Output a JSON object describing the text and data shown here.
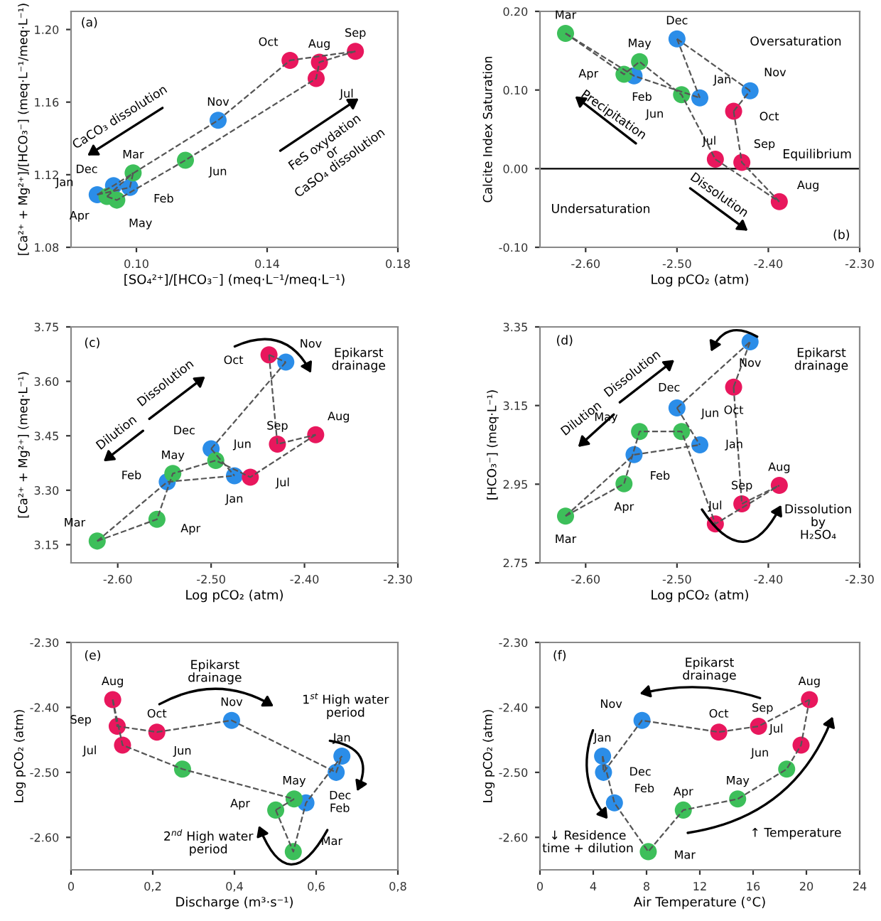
{
  "chart_data": [
    {
      "type": "scatter",
      "marker": "circle",
      "xlabel": "[SO₄²⁺]/[HCO₃⁻] (meq·L⁻¹/meq·L⁻¹)",
      "ylabel": "[Ca²⁺ + Mg²⁺]/[HCO₃⁻] (meq·L⁻¹/meq·L⁻¹)",
      "xlim": [
        0.08,
        0.18
      ],
      "ylim": [
        1.08,
        1.21
      ],
      "xticks": [
        {
          "value": 0.1,
          "label": "0.10"
        },
        {
          "value": 0.14,
          "label": "0.14"
        },
        {
          "value": 0.18,
          "label": "0.18"
        }
      ],
      "yticks": [
        {
          "value": 1.08,
          "label": "1.08"
        },
        {
          "value": 1.12,
          "label": "1.12"
        },
        {
          "value": 1.16,
          "label": "1.16"
        },
        {
          "value": 1.2,
          "label": "1.20"
        }
      ],
      "annotations": [
        "(a)",
        "CaCO₃ dissolution",
        "FeS oxydation\nor\nCaSO₄ dissolution"
      ],
      "series": [
        {
          "type": "line",
          "line_style": "dashed",
          "marker": "none",
          "color": "#555555",
          "x": [
            0.088,
            0.098,
            0.099
          ],
          "values": [
            1.109,
            1.113,
            1.121
          ]
        },
        {
          "type": "line",
          "line_style": "dashed",
          "marker": "none",
          "color": "#555555",
          "x": [
            0.091,
            0.099
          ],
          "values": [
            1.108,
            1.121
          ]
        },
        {
          "type": "line",
          "line_style": "dashed",
          "marker": "none",
          "color": "#555555",
          "x": [
            0.091,
            0.094,
            0.115,
            0.155,
            0.156,
            0.167
          ],
          "values": [
            1.108,
            1.106,
            1.128,
            1.173,
            1.182,
            1.188
          ]
        },
        {
          "type": "line",
          "line_style": "dashed",
          "marker": "none",
          "color": "#555555",
          "x": [
            0.088,
            0.093,
            0.125,
            0.147,
            0.167
          ],
          "values": [
            1.109,
            1.114,
            1.15,
            1.183,
            1.188
          ]
        },
        {
          "color": "#2b8de8",
          "x": [
            0.088,
            0.098,
            0.125,
            0.093
          ],
          "values": [
            1.109,
            1.113,
            1.15,
            1.114
          ],
          "value_labels": [
            "Jan",
            "Feb",
            "Nov",
            "Dec"
          ]
        },
        {
          "color": "#3dbf5a",
          "x": [
            0.099,
            0.091,
            0.094,
            0.115
          ],
          "values": [
            1.121,
            1.108,
            1.106,
            1.128
          ],
          "value_labels": [
            "Mar",
            "Apr",
            "May",
            "Jun"
          ]
        },
        {
          "color": "#e8175d",
          "x": [
            0.155,
            0.156,
            0.167,
            0.147
          ],
          "values": [
            1.173,
            1.182,
            1.188,
            1.183
          ],
          "value_labels": [
            "Jul",
            "Aug",
            "Sep",
            "Oct"
          ]
        }
      ]
    },
    {
      "type": "scatter",
      "marker": "circle",
      "xlabel": "Log pCO₂ (atm)",
      "ylabel": "Calcite Index Saturation",
      "xlim": [
        -2.65,
        -2.3
      ],
      "ylim": [
        -0.1,
        0.2
      ],
      "xticks": [
        {
          "value": -2.6,
          "label": "-2.60"
        },
        {
          "value": -2.5,
          "label": "-2.50"
        },
        {
          "value": -2.4,
          "label": "-2.40"
        },
        {
          "value": -2.3,
          "label": "-2.30"
        }
      ],
      "yticks": [
        {
          "value": -0.1,
          "label": "-0.10"
        },
        {
          "value": 0.0,
          "label": "0.00"
        },
        {
          "value": 0.1,
          "label": "0.10"
        },
        {
          "value": 0.2,
          "label": "0.20"
        }
      ],
      "ref_lines": [
        {
          "axis": "y",
          "value": 0,
          "label": "Equilibrium",
          "color": "#000000"
        }
      ],
      "annotations": [
        "(b)",
        "Oversaturation",
        "Undersaturation",
        "Precipitation",
        "Dissolution"
      ],
      "series": [
        {
          "type": "line",
          "line_style": "dashed",
          "marker": "none",
          "color": "#555555",
          "x": [
            -2.622,
            -2.547,
            -2.475
          ],
          "values": [
            0.172,
            0.118,
            0.09
          ]
        },
        {
          "type": "line",
          "line_style": "dashed",
          "marker": "none",
          "color": "#555555",
          "x": [
            -2.622,
            -2.558,
            -2.541,
            -2.495,
            -2.458,
            -2.388
          ],
          "values": [
            0.172,
            0.12,
            0.136,
            0.094,
            0.012,
            -0.042
          ]
        },
        {
          "type": "line",
          "line_style": "dashed",
          "marker": "none",
          "color": "#555555",
          "x": [
            -2.438,
            -2.429,
            -2.388
          ],
          "values": [
            0.073,
            0.008,
            -0.042
          ]
        },
        {
          "type": "line",
          "line_style": "dashed",
          "marker": "none",
          "color": "#555555",
          "x": [
            -2.438,
            -2.42
          ],
          "values": [
            0.073,
            0.099
          ]
        },
        {
          "type": "line",
          "line_style": "dashed",
          "marker": "none",
          "color": "#555555",
          "x": [
            -2.5,
            -2.42
          ],
          "values": [
            0.165,
            0.099
          ]
        },
        {
          "type": "line",
          "line_style": "dashed",
          "marker": "none",
          "color": "#555555",
          "x": [
            -2.5,
            -2.475
          ],
          "values": [
            0.165,
            0.09
          ]
        },
        {
          "color": "#2b8de8",
          "x": [
            -2.475,
            -2.547,
            -2.42,
            -2.5
          ],
          "values": [
            0.09,
            0.118,
            0.099,
            0.165
          ],
          "value_labels": [
            "Jan",
            "Feb",
            "Nov",
            "Dec"
          ]
        },
        {
          "color": "#3dbf5a",
          "x": [
            -2.622,
            -2.558,
            -2.541,
            -2.495
          ],
          "values": [
            0.172,
            0.12,
            0.136,
            0.094
          ],
          "value_labels": [
            "Mar",
            "Apr",
            "May",
            "Jun"
          ]
        },
        {
          "color": "#e8175d",
          "x": [
            -2.458,
            -2.388,
            -2.429,
            -2.438
          ],
          "values": [
            0.012,
            -0.042,
            0.008,
            0.073
          ],
          "value_labels": [
            "Jul",
            "Aug",
            "Sep",
            "Oct"
          ]
        }
      ]
    },
    {
      "type": "scatter",
      "marker": "circle",
      "xlabel": "Log pCO₂ (atm)",
      "ylabel": "[Ca²⁺ + Mg²⁺] (meq·L⁻¹)",
      "xlim": [
        -2.65,
        -2.3
      ],
      "ylim": [
        3.1,
        3.75
      ],
      "xticks": [
        {
          "value": -2.6,
          "label": "-2.60"
        },
        {
          "value": -2.5,
          "label": "-2.50"
        },
        {
          "value": -2.4,
          "label": "-2.40"
        },
        {
          "value": -2.3,
          "label": "-2.30"
        }
      ],
      "yticks": [
        3.15,
        {
          "value": 3.3,
          "label": "3.30"
        },
        3.45,
        {
          "value": 3.6,
          "label": "3.60"
        },
        3.75
      ],
      "annotations": [
        "(c)",
        "Dilution",
        "Dissolution",
        "Epikarst\ndrainage"
      ],
      "series": [
        {
          "type": "line",
          "line_style": "dashed",
          "marker": "none",
          "color": "#555555",
          "x": [
            -2.622,
            -2.547,
            -2.475
          ],
          "values": [
            3.16,
            3.323,
            3.34
          ]
        },
        {
          "type": "line",
          "line_style": "dashed",
          "marker": "none",
          "color": "#555555",
          "x": [
            -2.622,
            -2.558,
            -2.541,
            -2.495,
            -2.458,
            -2.388
          ],
          "values": [
            3.16,
            3.22,
            3.346,
            3.382,
            3.336,
            3.453
          ]
        },
        {
          "type": "line",
          "line_style": "dashed",
          "marker": "none",
          "color": "#555555",
          "x": [
            -2.438,
            -2.429,
            -2.388
          ],
          "values": [
            3.673,
            3.427,
            3.453
          ]
        },
        {
          "type": "line",
          "line_style": "dashed",
          "marker": "none",
          "color": "#555555",
          "x": [
            -2.438,
            -2.42
          ],
          "values": [
            3.673,
            3.653
          ]
        },
        {
          "type": "line",
          "line_style": "dashed",
          "marker": "none",
          "color": "#555555",
          "x": [
            -2.5,
            -2.42
          ],
          "values": [
            3.414,
            3.653
          ]
        },
        {
          "type": "line",
          "line_style": "dashed",
          "marker": "none",
          "color": "#555555",
          "x": [
            -2.5,
            -2.475
          ],
          "values": [
            3.414,
            3.34
          ]
        },
        {
          "color": "#2b8de8",
          "x": [
            -2.475,
            -2.547,
            -2.42,
            -2.5
          ],
          "values": [
            3.34,
            3.323,
            3.653,
            3.414
          ],
          "value_labels": [
            "Jan",
            "Feb",
            "Nov",
            "Dec"
          ]
        },
        {
          "color": "#3dbf5a",
          "x": [
            -2.622,
            -2.558,
            -2.541,
            -2.495
          ],
          "values": [
            3.16,
            3.22,
            3.346,
            3.382
          ],
          "value_labels": [
            "Mar",
            "Apr",
            "May",
            "Jun"
          ]
        },
        {
          "color": "#e8175d",
          "x": [
            -2.458,
            -2.388,
            -2.429,
            -2.438
          ],
          "values": [
            3.336,
            3.453,
            3.427,
            3.673
          ],
          "value_labels": [
            "Jul",
            "Aug",
            "Sep",
            "Oct"
          ]
        }
      ]
    },
    {
      "type": "scatter",
      "marker": "circle",
      "xlabel": "Log pCO₂ (atm)",
      "ylabel": "[HCO₃⁻] (meq·L⁻¹)",
      "xlim": [
        -2.65,
        -2.3
      ],
      "ylim": [
        2.75,
        3.35
      ],
      "xticks": [
        {
          "value": -2.6,
          "label": "-2.60"
        },
        {
          "value": -2.5,
          "label": "-2.50"
        },
        {
          "value": -2.4,
          "label": "-2.40"
        },
        {
          "value": -2.3,
          "label": "-2.30"
        }
      ],
      "yticks": [
        2.75,
        2.95,
        3.15,
        3.35
      ],
      "annotations": [
        "(d)",
        "Dilution",
        "Dissolution",
        "Epikarst\ndrainage",
        "Dissolution\nby\nH₂SO₄"
      ],
      "series": [
        {
          "type": "line",
          "line_style": "dashed",
          "marker": "none",
          "color": "#555555",
          "x": [
            -2.622,
            -2.547,
            -2.475
          ],
          "values": [
            2.869,
            3.025,
            3.05
          ]
        },
        {
          "type": "line",
          "line_style": "dashed",
          "marker": "none",
          "color": "#555555",
          "x": [
            -2.622,
            -2.558,
            -2.541,
            -2.495,
            -2.458,
            -2.388
          ],
          "values": [
            2.869,
            2.951,
            3.084,
            3.084,
            2.849,
            2.947
          ]
        },
        {
          "type": "line",
          "line_style": "dashed",
          "marker": "none",
          "color": "#555555",
          "x": [
            -2.438,
            -2.429,
            -2.388
          ],
          "values": [
            3.197,
            2.9,
            2.947
          ]
        },
        {
          "type": "line",
          "line_style": "dashed",
          "marker": "none",
          "color": "#555555",
          "x": [
            -2.438,
            -2.42
          ],
          "values": [
            3.197,
            3.312
          ]
        },
        {
          "type": "line",
          "line_style": "dashed",
          "marker": "none",
          "color": "#555555",
          "x": [
            -2.5,
            -2.42
          ],
          "values": [
            3.144,
            3.312
          ]
        },
        {
          "type": "line",
          "line_style": "dashed",
          "marker": "none",
          "color": "#555555",
          "x": [
            -2.5,
            -2.475
          ],
          "values": [
            3.144,
            3.05
          ]
        },
        {
          "color": "#2b8de8",
          "x": [
            -2.475,
            -2.547,
            -2.42,
            -2.5
          ],
          "values": [
            3.05,
            3.025,
            3.312,
            3.144
          ],
          "value_labels": [
            "Jan",
            "Feb",
            "Nov",
            "Dec"
          ]
        },
        {
          "color": "#3dbf5a",
          "x": [
            -2.622,
            -2.558,
            -2.541,
            -2.495
          ],
          "values": [
            2.869,
            2.951,
            3.084,
            3.084
          ],
          "value_labels": [
            "Mar",
            "Apr",
            "May",
            "Jun"
          ]
        },
        {
          "color": "#e8175d",
          "x": [
            -2.458,
            -2.388,
            -2.429,
            -2.438
          ],
          "values": [
            2.849,
            2.947,
            2.9,
            3.197
          ],
          "value_labels": [
            "Jul",
            "Aug",
            "Sep",
            "Oct"
          ]
        }
      ]
    },
    {
      "type": "scatter",
      "marker": "circle",
      "xlabel": "Discharge (m³·s⁻¹)",
      "ylabel": "Log pCO₂ (atm)",
      "xlim": [
        0,
        0.8
      ],
      "ylim": [
        -2.65,
        -2.3
      ],
      "xticks": [
        0,
        {
          "value": 0.2,
          "label": "0,2"
        },
        {
          "value": 0.4,
          "label": "0,4"
        },
        {
          "value": 0.6,
          "label": "0,6"
        },
        {
          "value": 0.8,
          "label": "0,8"
        }
      ],
      "yticks": [
        {
          "value": -2.6,
          "label": "-2.60"
        },
        {
          "value": -2.5,
          "label": "-2.50"
        },
        {
          "value": -2.4,
          "label": "-2.40"
        },
        {
          "value": -2.3,
          "label": "-2.30"
        }
      ],
      "annotations": [
        "(e)",
        "Epikarst\ndrainage",
        "1$^{st}$ High water\nperiod",
        "2$^{nd}$ High water\nperiod"
      ],
      "series": [
        {
          "type": "line",
          "line_style": "dashed",
          "marker": "none",
          "color": "#555555",
          "x": [
            0.501,
            0.544,
            0.575,
            0.663
          ],
          "values": [
            -2.558,
            -2.622,
            -2.547,
            -2.475
          ]
        },
        {
          "type": "line",
          "line_style": "dashed",
          "marker": "none",
          "color": "#555555",
          "x": [
            0.501,
            0.546
          ],
          "values": [
            -2.558,
            -2.541
          ]
        },
        {
          "type": "line",
          "line_style": "dashed",
          "marker": "none",
          "color": "#555555",
          "x": [
            0.102,
            0.126,
            0.273,
            0.546
          ],
          "values": [
            -2.388,
            -2.458,
            -2.495,
            -2.541
          ]
        },
        {
          "type": "line",
          "line_style": "dashed",
          "marker": "none",
          "color": "#555555",
          "x": [
            0.102,
            0.113,
            0.21,
            0.393,
            0.649,
            0.663
          ],
          "values": [
            -2.388,
            -2.429,
            -2.438,
            -2.42,
            -2.5,
            -2.475
          ]
        },
        {
          "color": "#2b8de8",
          "x": [
            0.663,
            0.575,
            0.393,
            0.649
          ],
          "values": [
            -2.475,
            -2.547,
            -2.42,
            -2.5
          ],
          "value_labels": [
            "Jan",
            "Feb",
            "Nov",
            "Dec"
          ]
        },
        {
          "color": "#3dbf5a",
          "x": [
            0.544,
            0.501,
            0.546,
            0.273
          ],
          "values": [
            -2.622,
            -2.558,
            -2.541,
            -2.495
          ],
          "value_labels": [
            "Mar",
            "Apr",
            "May",
            "Jun"
          ]
        },
        {
          "color": "#e8175d",
          "x": [
            0.126,
            0.102,
            0.113,
            0.21
          ],
          "values": [
            -2.458,
            -2.388,
            -2.429,
            -2.438
          ],
          "value_labels": [
            "Jul",
            "Aug",
            "Sep",
            "Oct"
          ]
        }
      ]
    },
    {
      "type": "scatter",
      "marker": "circle",
      "xlabel": "Air Temperature (°C)",
      "ylabel": "Log pCO₂ (atm)",
      "xlim": [
        0,
        24
      ],
      "ylim": [
        -2.65,
        -2.3
      ],
      "xticks": [
        0,
        4,
        8,
        12,
        16,
        20,
        24
      ],
      "yticks": [
        {
          "value": -2.6,
          "label": "-2.60"
        },
        {
          "value": -2.5,
          "label": "-2.50"
        },
        {
          "value": -2.4,
          "label": "-2.40"
        },
        {
          "value": -2.3,
          "label": "-2.30"
        }
      ],
      "annotations": [
        "(f)",
        "Epikarst\ndrainage",
        "↓ Residence\ntime + dilution",
        "↑ Temperature"
      ],
      "series": [
        {
          "type": "line",
          "line_style": "dashed",
          "marker": "none",
          "color": "#555555",
          "x": [
            4.7,
            5.59,
            8.13,
            10.76,
            14.84,
            18.52,
            19.6,
            20.23
          ],
          "values": [
            -2.475,
            -2.547,
            -2.622,
            -2.558,
            -2.541,
            -2.495,
            -2.458,
            -2.388
          ]
        },
        {
          "type": "line",
          "line_style": "dashed",
          "marker": "none",
          "color": "#555555",
          "x": [
            4.7,
            4.77,
            7.66,
            13.42,
            16.41,
            20.23
          ],
          "values": [
            -2.475,
            -2.5,
            -2.42,
            -2.438,
            -2.429,
            -2.388
          ]
        },
        {
          "color": "#2b8de8",
          "x": [
            4.7,
            5.59,
            7.66,
            4.77
          ],
          "values": [
            -2.475,
            -2.547,
            -2.42,
            -2.5
          ],
          "value_labels": [
            "Jan",
            "Feb",
            "Nov",
            "Dec"
          ]
        },
        {
          "color": "#3dbf5a",
          "x": [
            8.13,
            10.76,
            14.84,
            18.52
          ],
          "values": [
            -2.622,
            -2.558,
            -2.541,
            -2.495
          ],
          "value_labels": [
            "Mar",
            "Apr",
            "May",
            "Jun"
          ]
        },
        {
          "color": "#e8175d",
          "x": [
            19.6,
            20.23,
            16.41,
            13.42
          ],
          "values": [
            -2.458,
            -2.388,
            -2.429,
            -2.438
          ],
          "value_labels": [
            "Jul",
            "Aug",
            "Sep",
            "Oct"
          ]
        }
      ]
    }
  ]
}
